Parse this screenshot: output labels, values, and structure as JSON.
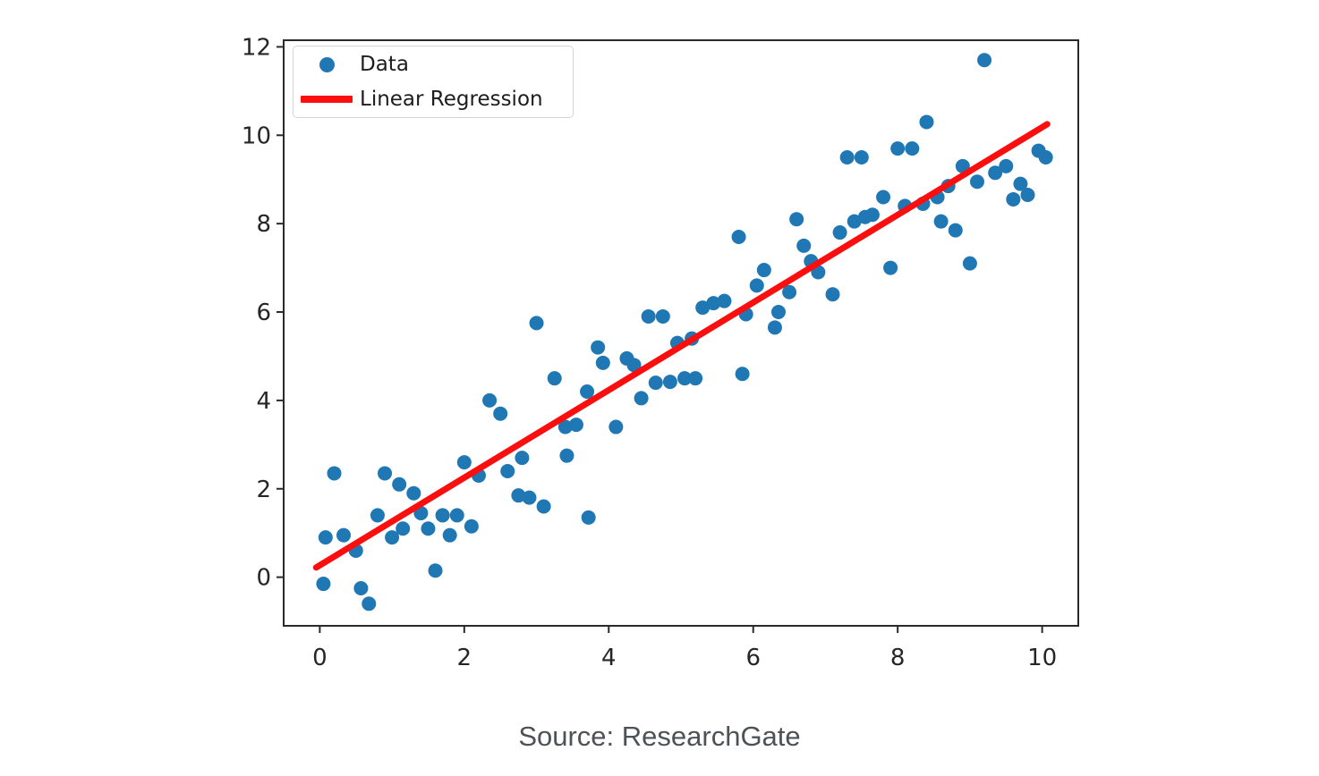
{
  "caption": {
    "text": "Source: ResearchGate"
  },
  "chart_data": {
    "type": "scatter",
    "title": "",
    "xlabel": "",
    "ylabel": "",
    "xlim": [
      -0.5,
      10.5
    ],
    "ylim": [
      -1.1,
      12.15
    ],
    "x_ticks": [
      0,
      2,
      4,
      6,
      8,
      10
    ],
    "y_ticks": [
      0,
      2,
      4,
      6,
      8,
      10,
      12
    ],
    "grid": false,
    "frame_color": "#2a2a2a",
    "tick_label_color": "#262626",
    "legend": {
      "position": "upper left",
      "items": [
        {
          "label": "Data",
          "marker": "dot",
          "color": "#1f77b4"
        },
        {
          "label": "Linear Regression",
          "marker": "line",
          "color": "#fb0e0e"
        }
      ]
    },
    "series": [
      {
        "name": "Data",
        "type": "scatter",
        "color": "#1f77b4",
        "marker_radius": 8,
        "points": [
          [
            0.05,
            -0.15
          ],
          [
            0.08,
            0.9
          ],
          [
            0.2,
            2.35
          ],
          [
            0.33,
            0.95
          ],
          [
            0.5,
            0.6
          ],
          [
            0.57,
            -0.25
          ],
          [
            0.68,
            -0.6
          ],
          [
            0.8,
            1.4
          ],
          [
            0.9,
            2.35
          ],
          [
            1.0,
            0.9
          ],
          [
            1.1,
            2.1
          ],
          [
            1.15,
            1.1
          ],
          [
            1.3,
            1.9
          ],
          [
            1.4,
            1.45
          ],
          [
            1.5,
            1.1
          ],
          [
            1.6,
            0.15
          ],
          [
            1.7,
            1.4
          ],
          [
            1.8,
            0.95
          ],
          [
            1.9,
            1.4
          ],
          [
            2.1,
            1.15
          ],
          [
            2.0,
            2.6
          ],
          [
            2.2,
            2.3
          ],
          [
            2.35,
            4.0
          ],
          [
            2.5,
            3.7
          ],
          [
            2.6,
            2.4
          ],
          [
            2.8,
            2.7
          ],
          [
            2.75,
            1.85
          ],
          [
            2.9,
            1.8
          ],
          [
            3.0,
            5.75
          ],
          [
            3.1,
            1.6
          ],
          [
            3.25,
            4.5
          ],
          [
            3.4,
            3.4
          ],
          [
            3.42,
            2.75
          ],
          [
            3.55,
            3.45
          ],
          [
            3.7,
            4.2
          ],
          [
            3.72,
            1.35
          ],
          [
            3.85,
            5.2
          ],
          [
            3.92,
            4.85
          ],
          [
            4.1,
            3.4
          ],
          [
            4.25,
            4.95
          ],
          [
            4.35,
            4.8
          ],
          [
            4.45,
            4.05
          ],
          [
            4.55,
            5.9
          ],
          [
            4.65,
            4.4
          ],
          [
            4.75,
            5.9
          ],
          [
            4.85,
            4.42
          ],
          [
            4.95,
            5.3
          ],
          [
            5.05,
            4.5
          ],
          [
            5.15,
            5.4
          ],
          [
            5.2,
            4.5
          ],
          [
            5.3,
            6.1
          ],
          [
            5.45,
            6.2
          ],
          [
            5.6,
            6.25
          ],
          [
            5.8,
            7.7
          ],
          [
            5.85,
            4.6
          ],
          [
            5.9,
            5.95
          ],
          [
            6.05,
            6.6
          ],
          [
            6.15,
            6.95
          ],
          [
            6.3,
            5.65
          ],
          [
            6.35,
            6.0
          ],
          [
            6.5,
            6.45
          ],
          [
            6.6,
            8.1
          ],
          [
            6.7,
            7.5
          ],
          [
            6.8,
            7.15
          ],
          [
            6.9,
            6.9
          ],
          [
            7.1,
            6.4
          ],
          [
            7.2,
            7.8
          ],
          [
            7.3,
            9.5
          ],
          [
            7.4,
            8.05
          ],
          [
            7.5,
            9.5
          ],
          [
            7.55,
            8.15
          ],
          [
            7.65,
            8.2
          ],
          [
            7.8,
            8.6
          ],
          [
            7.9,
            7.0
          ],
          [
            8.0,
            9.7
          ],
          [
            8.1,
            8.4
          ],
          [
            8.2,
            9.7
          ],
          [
            8.35,
            8.45
          ],
          [
            8.4,
            10.3
          ],
          [
            8.55,
            8.6
          ],
          [
            8.6,
            8.05
          ],
          [
            8.7,
            8.85
          ],
          [
            8.8,
            7.85
          ],
          [
            8.9,
            9.3
          ],
          [
            9.0,
            7.1
          ],
          [
            9.1,
            8.95
          ],
          [
            9.2,
            11.7
          ],
          [
            9.35,
            9.15
          ],
          [
            9.5,
            9.3
          ],
          [
            9.6,
            8.55
          ],
          [
            9.7,
            8.9
          ],
          [
            9.8,
            8.65
          ],
          [
            9.95,
            9.65
          ],
          [
            10.05,
            9.5
          ]
        ]
      },
      {
        "name": "Linear Regression",
        "type": "line",
        "color": "#fb0e0e",
        "line_width": 7,
        "points": [
          [
            -0.05,
            0.22
          ],
          [
            10.07,
            10.25
          ]
        ]
      }
    ]
  }
}
